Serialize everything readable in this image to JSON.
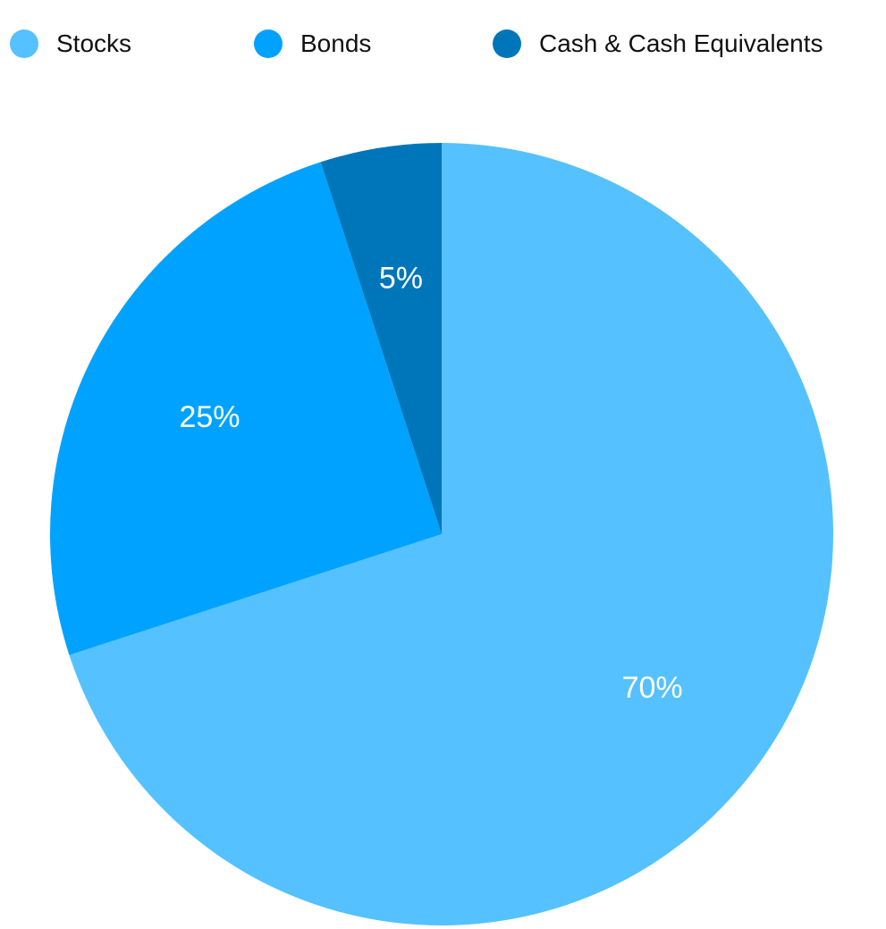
{
  "chart_data": {
    "type": "pie",
    "title": "",
    "categories": [
      "Stocks",
      "Bonds",
      "Cash & Cash Equivalents"
    ],
    "values": [
      70,
      25,
      5
    ],
    "data_labels": [
      "70%",
      "25%",
      "5%"
    ],
    "colors": [
      "#55C1FF",
      "#00A2FF",
      "#0076BA"
    ],
    "start_angle": "top",
    "direction": "clockwise",
    "legend_position": "top"
  }
}
